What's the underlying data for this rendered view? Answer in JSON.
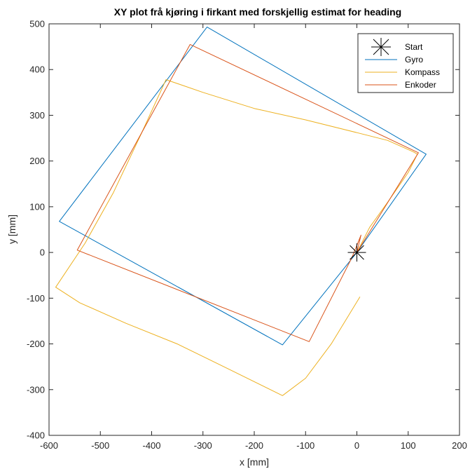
{
  "chart_data": {
    "type": "line",
    "title": "XY plot frå kjøring i firkant med forskjellig estimat for heading",
    "xlabel": "x [mm]",
    "ylabel": "y [mm]",
    "xlim": [
      -600,
      200
    ],
    "ylim": [
      -400,
      500
    ],
    "xticks": [
      "-600",
      "-500",
      "-400",
      "-300",
      "-200",
      "-100",
      "0",
      "100",
      "200"
    ],
    "yticks": [
      "-400",
      "-300",
      "-200",
      "-100",
      "0",
      "100",
      "200",
      "300",
      "400",
      "500"
    ],
    "grid": false,
    "legend_position": "top-right",
    "start_marker": {
      "name": "Start",
      "x": 0,
      "y": 0,
      "color": "#000000"
    },
    "series": [
      {
        "name": "Gyro",
        "color": "#0072BD",
        "points": [
          [
            0,
            0
          ],
          [
            -145,
            -202
          ],
          [
            -580,
            68
          ],
          [
            -292,
            493
          ],
          [
            135,
            215
          ],
          [
            0,
            0
          ]
        ]
      },
      {
        "name": "Kompass",
        "color": "#EDB120",
        "points": [
          [
            6,
            -97
          ],
          [
            -50,
            -200
          ],
          [
            -100,
            -275
          ],
          [
            -145,
            -313
          ],
          [
            -250,
            -255
          ],
          [
            -350,
            -200
          ],
          [
            -450,
            -155
          ],
          [
            -540,
            -110
          ],
          [
            -587,
            -76
          ],
          [
            -530,
            20
          ],
          [
            -475,
            130
          ],
          [
            -420,
            260
          ],
          [
            -372,
            378
          ],
          [
            -300,
            350
          ],
          [
            -200,
            315
          ],
          [
            -100,
            290
          ],
          [
            0,
            262
          ],
          [
            60,
            245
          ],
          [
            110,
            220
          ],
          [
            118,
            215
          ],
          [
            100,
            175
          ],
          [
            60,
            110
          ],
          [
            25,
            55
          ],
          [
            0,
            0
          ]
        ]
      },
      {
        "name": "Enkoder",
        "color": "#D95319",
        "points": [
          [
            0,
            0
          ],
          [
            8,
            38
          ],
          [
            -10,
            -12
          ],
          [
            -93,
            -195
          ],
          [
            -545,
            5
          ],
          [
            -325,
            455
          ],
          [
            120,
            218
          ],
          [
            0,
            0
          ]
        ]
      }
    ]
  }
}
